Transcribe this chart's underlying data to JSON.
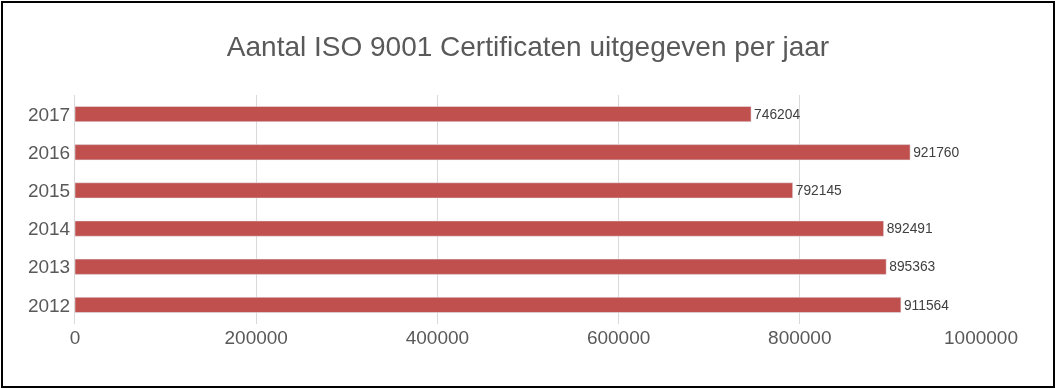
{
  "chart_data": {
    "type": "bar",
    "orientation": "horizontal",
    "title": "Aantal ISO 9001 Certificaten uitgegeven per jaar",
    "categories": [
      "2017",
      "2016",
      "2015",
      "2014",
      "2013",
      "2012"
    ],
    "values": [
      746204,
      921760,
      792145,
      892491,
      895363,
      911564
    ],
    "color": "#c0504d",
    "xlim": [
      0,
      1000000
    ],
    "xticks": [
      0,
      200000,
      400000,
      600000,
      800000,
      1000000
    ],
    "grid": "x",
    "data_labels": true,
    "legend": false
  }
}
